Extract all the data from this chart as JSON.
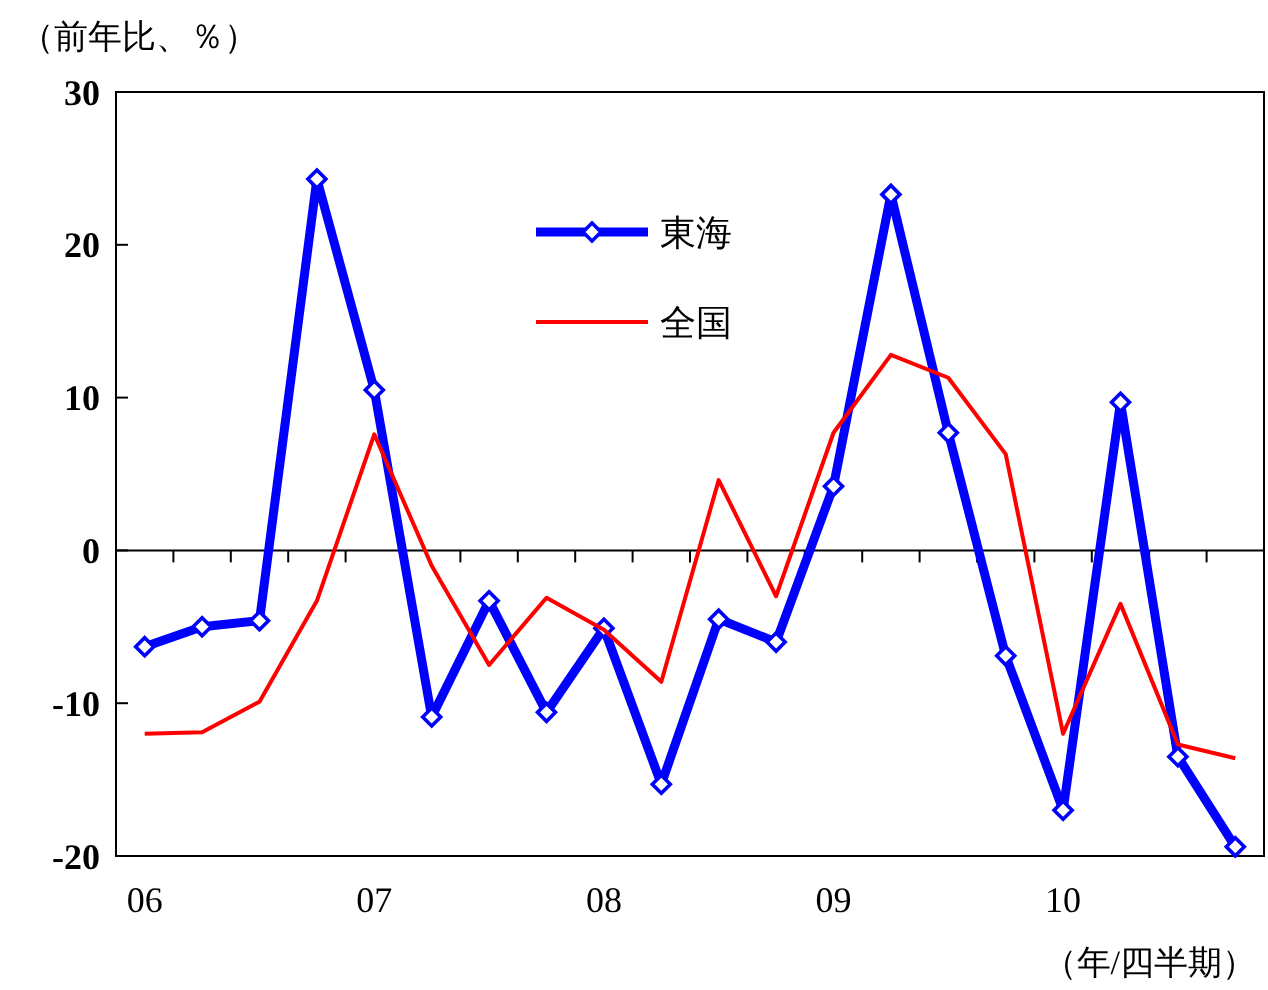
{
  "chart_data": {
    "type": "line",
    "ylabel": "（前年比、％）",
    "xlabel": "（年/四半期）",
    "categories": [
      "06",
      null,
      null,
      null,
      "07",
      null,
      null,
      null,
      "08",
      null,
      null,
      null,
      "09",
      null,
      null,
      null,
      "10",
      null,
      null,
      null
    ],
    "series": [
      {
        "name": "東海",
        "color": "#0000ff",
        "marker": "diamond",
        "values": [
          -6.3,
          -5.0,
          -4.6,
          24.3,
          10.5,
          -10.9,
          -3.3,
          -10.6,
          -5.1,
          -15.3,
          -4.5,
          -6.0,
          4.2,
          23.3,
          7.7,
          -6.9,
          -17.0,
          9.7,
          -13.5,
          -19.4
        ]
      },
      {
        "name": "全国",
        "color": "#ff0000",
        "marker": "none",
        "values": [
          -12.0,
          -11.9,
          -9.9,
          -3.3,
          7.6,
          -1.0,
          -7.5,
          -3.1,
          -5.2,
          -8.6,
          4.6,
          -3.0,
          7.7,
          12.8,
          11.3,
          6.3,
          -12.0,
          -3.5,
          -12.7,
          -13.6
        ]
      }
    ],
    "ylim": [
      -20,
      30
    ],
    "yticks": [
      -20,
      -10,
      0,
      10,
      20,
      30
    ],
    "ref_lines": [
      {
        "axis": "y",
        "value": 0,
        "color": "#000000"
      }
    ],
    "legend": "top"
  }
}
